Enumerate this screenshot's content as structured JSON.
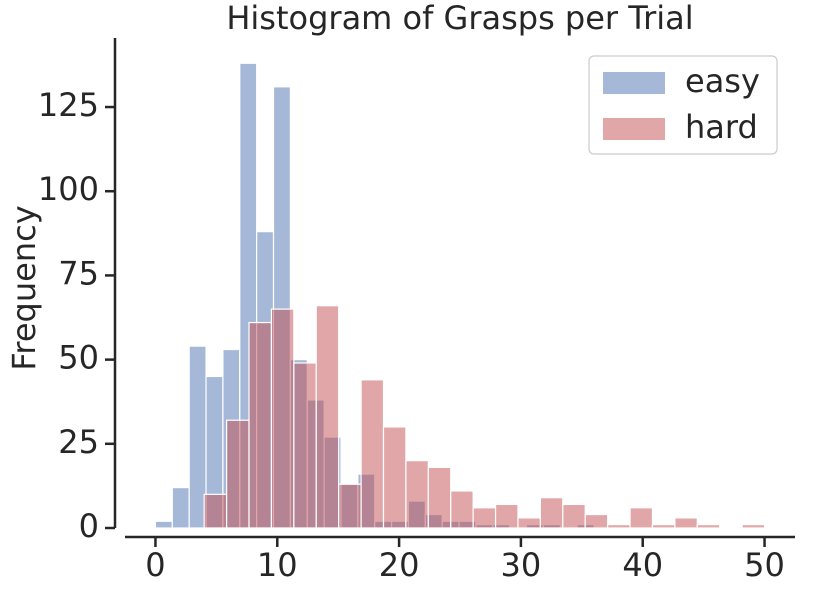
{
  "chart_data": {
    "type": "histogram",
    "title": "Histogram of Grasps per Trial",
    "y_label": "Frequency",
    "xlim": [
      -2.5,
      52.5
    ],
    "ylim": [
      0,
      145.5
    ],
    "xticks": [
      0,
      10,
      20,
      30,
      40,
      50
    ],
    "yticks": [
      0,
      25,
      50,
      75,
      100,
      125
    ],
    "legend": "upper right",
    "series": [
      {
        "name": "easy",
        "color": "#4c72b0",
        "bins": [
          0,
          1.385,
          2.769,
          4.154,
          5.538,
          6.923,
          8.308,
          9.692,
          11.077,
          12.462,
          13.846,
          15.231,
          16.615,
          18,
          19.385,
          20.769,
          22.154,
          23.538,
          24.923,
          26.308,
          27.692,
          29.077,
          30.462,
          31.846,
          33.231,
          34.615,
          36
        ],
        "values": [
          2,
          12,
          54,
          45,
          53,
          138,
          88,
          131,
          50,
          38,
          27,
          13,
          16,
          2,
          2,
          8,
          4,
          2,
          2,
          1,
          1,
          0,
          1,
          1,
          0,
          1
        ]
      },
      {
        "name": "hard",
        "color": "#c44e52",
        "bins": [
          4,
          5.84,
          7.68,
          9.52,
          11.36,
          13.2,
          15.04,
          16.88,
          18.72,
          20.56,
          22.4,
          24.24,
          26.08,
          27.92,
          29.76,
          31.6,
          33.44,
          35.28,
          37.12,
          38.96,
          40.8,
          42.64,
          44.48,
          46.32,
          48.16,
          50
        ],
        "values": [
          10,
          32,
          61,
          65,
          49,
          66,
          13,
          44,
          30,
          20,
          18,
          11,
          6,
          7,
          3,
          9,
          7,
          4,
          1,
          6,
          1,
          3,
          1,
          0,
          1
        ]
      }
    ]
  }
}
